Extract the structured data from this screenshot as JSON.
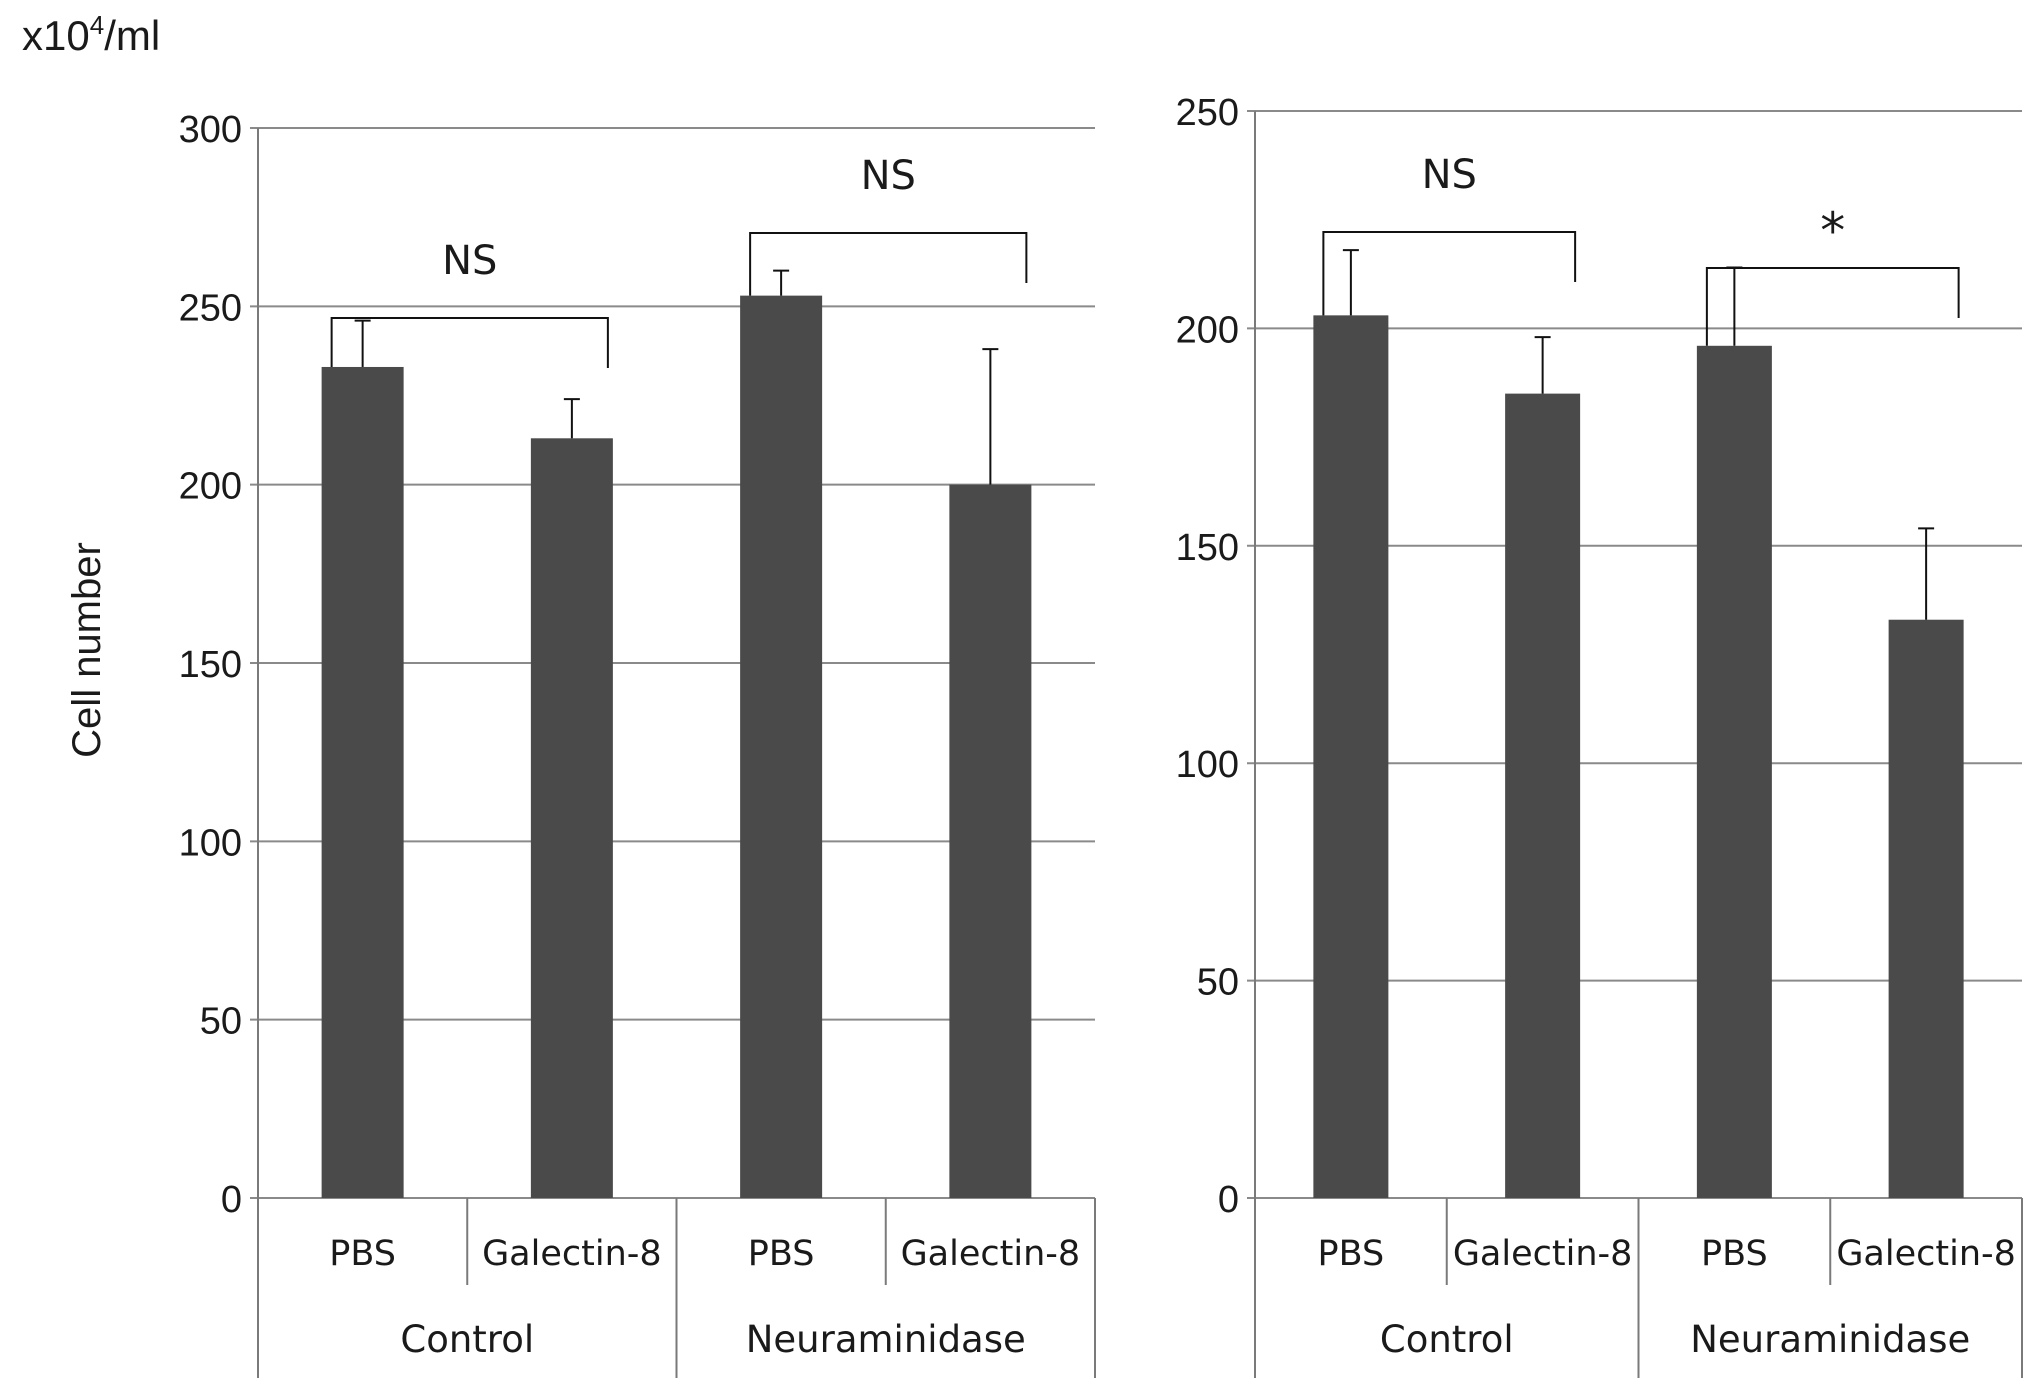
{
  "unit_label": "x10",
  "unit_sup": "4",
  "unit_suffix": "/ml",
  "ylabel": "Cell number",
  "colors": {
    "bar": "#4a4a4a",
    "grid": "#8a8a8a",
    "axis": "#7a7a7a",
    "text": "#1a1a1a"
  },
  "chart_data": [
    {
      "type": "bar",
      "title": "",
      "ylabel": "Cell number",
      "ylim": [
        0,
        300
      ],
      "yticks": [
        0,
        50,
        100,
        150,
        200,
        250,
        300
      ],
      "grid": true,
      "categories": [
        "PBS",
        "Galectin-8",
        "PBS",
        "Galectin-8"
      ],
      "groups": [
        "Control",
        "Neuraminidase"
      ],
      "values": [
        233,
        213,
        253,
        200
      ],
      "errors": [
        13,
        11,
        7,
        38
      ],
      "annotations": [
        {
          "text": "NS",
          "from": 0,
          "to": 1
        },
        {
          "text": "NS",
          "from": 2,
          "to": 3
        }
      ]
    },
    {
      "type": "bar",
      "title": "",
      "ylabel": "",
      "ylim": [
        0,
        250
      ],
      "yticks": [
        0,
        50,
        100,
        150,
        200,
        250
      ],
      "grid": true,
      "categories": [
        "PBS",
        "Galectin-8",
        "PBS",
        "Galectin-8"
      ],
      "groups": [
        "Control",
        "Neuraminidase"
      ],
      "values": [
        203,
        185,
        196,
        133
      ],
      "errors": [
        15,
        13,
        18,
        21
      ],
      "annotations": [
        {
          "text": "NS",
          "from": 0,
          "to": 1
        },
        {
          "text": "*",
          "from": 2,
          "to": 3
        }
      ]
    }
  ]
}
